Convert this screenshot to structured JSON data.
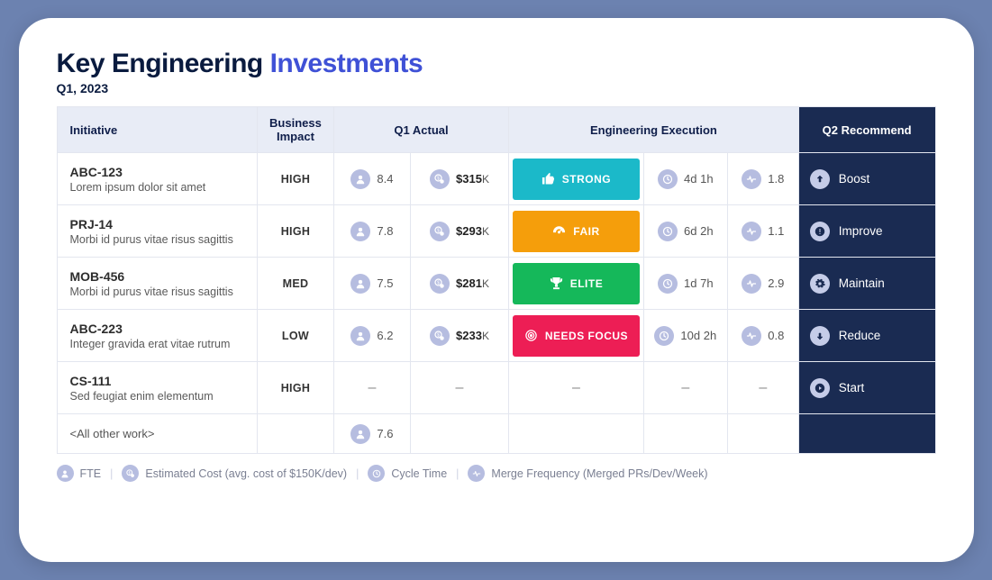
{
  "page": {
    "title_prefix": "Key Engineering ",
    "title_accent": "Investments",
    "subtitle": "Q1, 2023",
    "background_color": "#6c82b0",
    "card_bg": "#ffffff"
  },
  "columns": {
    "initiative": "Initiative",
    "impact": "Business Impact",
    "q1_actual": "Q1 Actual",
    "execution": "Engineering  Execution",
    "recommend": "Q2 Recommend"
  },
  "execution_levels": {
    "strong": {
      "label": "STRONG",
      "color": "#1bb9c9"
    },
    "fair": {
      "label": "FAIR",
      "color": "#f59e0b"
    },
    "elite": {
      "label": "ELITE",
      "color": "#15b85a"
    },
    "needs_focus": {
      "label": "NEEDS FOCUS",
      "color": "#ed1e55"
    }
  },
  "recommend_actions": {
    "boost": {
      "label": "Boost",
      "icon": "arrow-up"
    },
    "improve": {
      "label": "Improve",
      "icon": "alert"
    },
    "maintain": {
      "label": "Maintain",
      "icon": "gear"
    },
    "reduce": {
      "label": "Reduce",
      "icon": "arrow-down"
    },
    "start": {
      "label": "Start",
      "icon": "play"
    }
  },
  "rows": [
    {
      "code": "ABC-123",
      "desc": "Lorem ipsum dolor sit amet",
      "impact": "HIGH",
      "fte": "8.4",
      "cost_num": "$315",
      "cost_suffix": "K",
      "exec": "strong",
      "cycle": "4d 1h",
      "merge": "1.8",
      "recommend": "boost"
    },
    {
      "code": "PRJ-14",
      "desc": "Morbi id purus vitae risus sagittis",
      "impact": "HIGH",
      "fte": "7.8",
      "cost_num": "$293",
      "cost_suffix": "K",
      "exec": "fair",
      "cycle": "6d 2h",
      "merge": "1.1",
      "recommend": "improve"
    },
    {
      "code": "MOB-456",
      "desc": "Morbi id purus vitae risus sagittis",
      "impact": "MED",
      "fte": "7.5",
      "cost_num": "$281",
      "cost_suffix": "K",
      "exec": "elite",
      "cycle": "1d 7h",
      "merge": "2.9",
      "recommend": "maintain"
    },
    {
      "code": "ABC-223",
      "desc": "Integer gravida erat vitae rutrum",
      "impact": "LOW",
      "fte": "6.2",
      "cost_num": "$233",
      "cost_suffix": "K",
      "exec": "needs_focus",
      "cycle": "10d 2h",
      "merge": "0.8",
      "recommend": "reduce"
    },
    {
      "code": "CS-111",
      "desc": "Sed feugiat enim elementum",
      "impact": "HIGH",
      "fte": null,
      "cost_num": null,
      "cost_suffix": null,
      "exec": null,
      "cycle": null,
      "merge": null,
      "recommend": "start"
    }
  ],
  "summary_row": {
    "label": "<All other work>",
    "fte": "7.6"
  },
  "legend": {
    "fte": "FTE",
    "cost": "Estimated Cost (avg. cost of $150K/dev)",
    "cycle": "Cycle Time",
    "merge": "Merge Frequency (Merged PRs/Dev/Week)"
  },
  "colors": {
    "header_bg": "#e8ecf6",
    "header_text": "#0f1e4a",
    "recommend_bg": "#1a2b52",
    "icon_badge_bg": "#b6bde0",
    "border": "#e3e6ef"
  }
}
